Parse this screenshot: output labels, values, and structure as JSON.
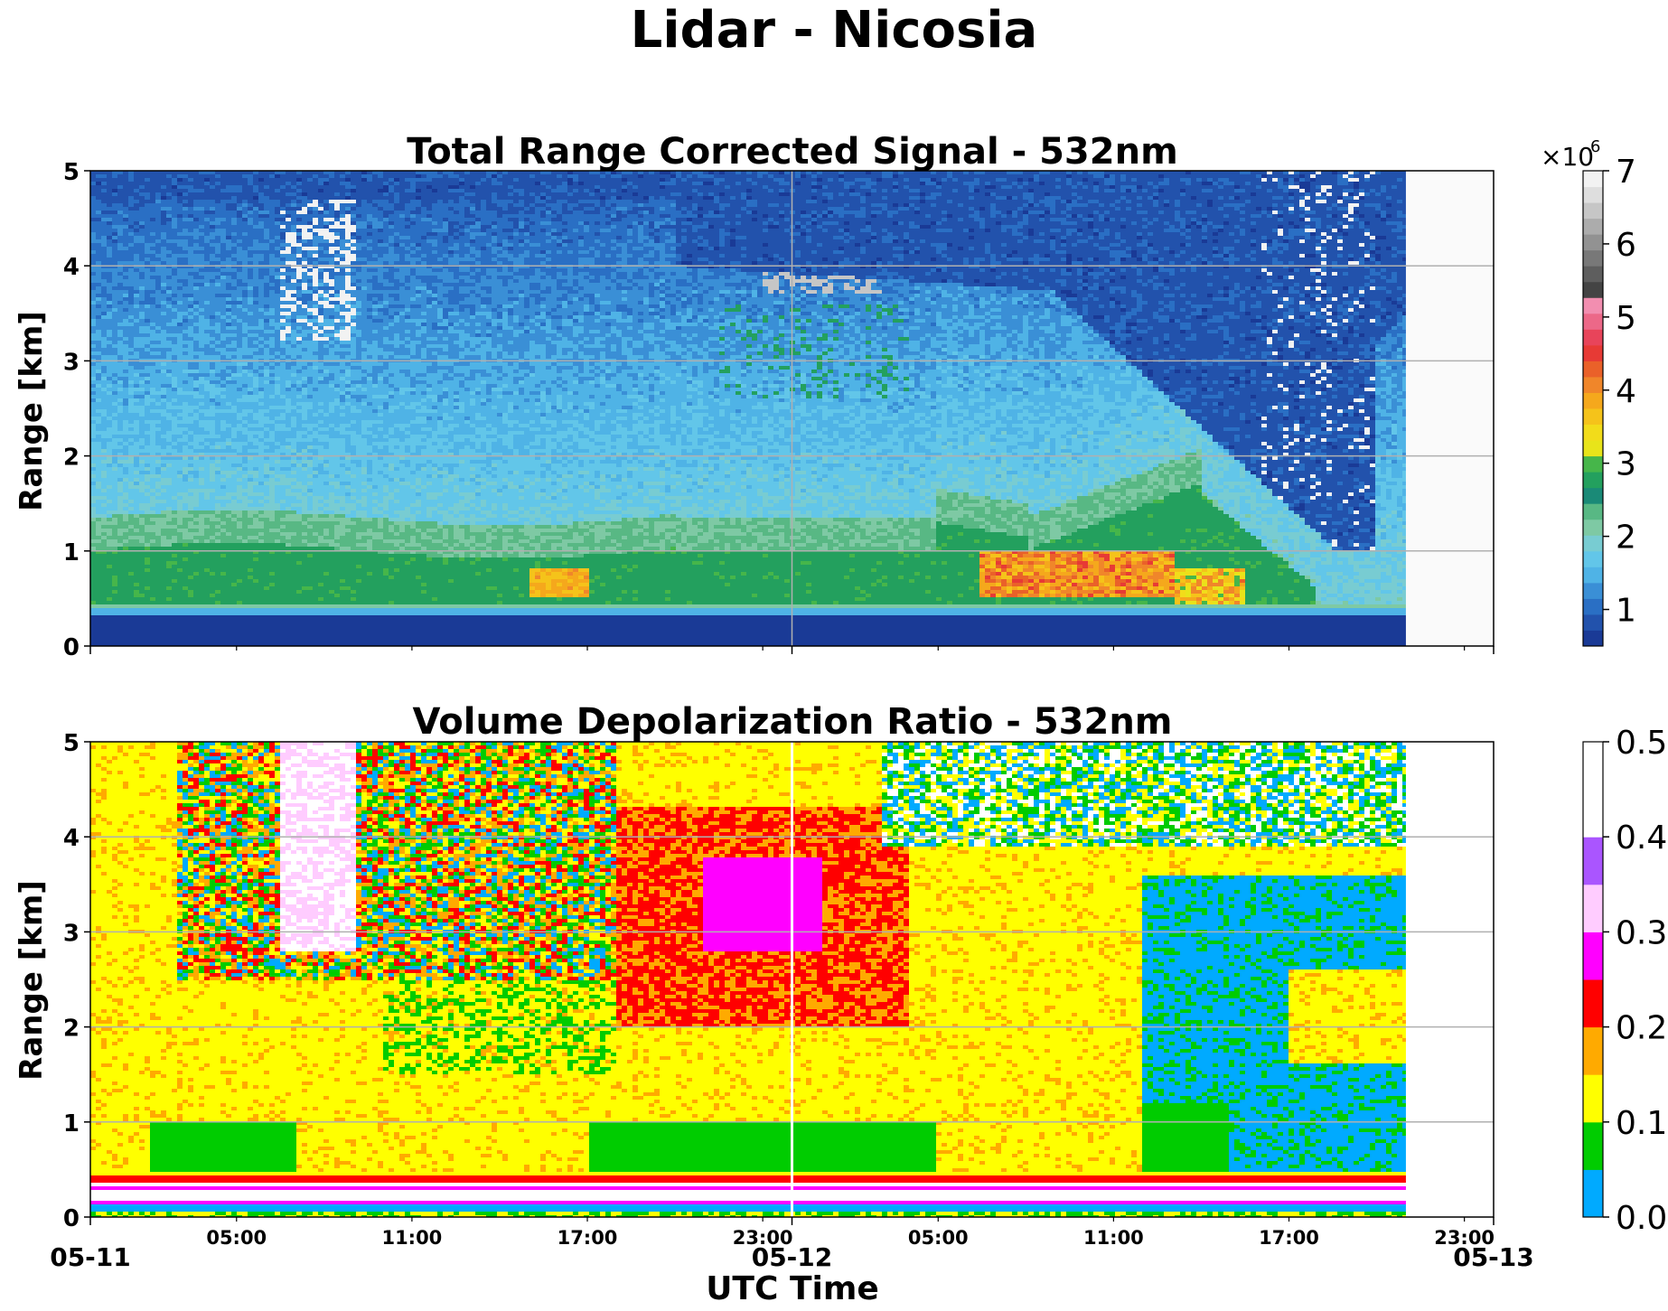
{
  "figure": {
    "suptitle": "Lidar - Nicosia",
    "xlabel": "UTC Time"
  },
  "chart_data": [
    {
      "type": "heatmap",
      "title": "Total Range Corrected Signal - 532nm",
      "ylabel": "Range [km]",
      "xlim": [
        "2019-05-11 00:00",
        "2019-05-13 00:00"
      ],
      "ylim": [
        0,
        5
      ],
      "yticks": [
        0,
        1,
        2,
        3,
        4,
        5
      ],
      "grid": true,
      "data_end": "2019-05-12 21:00",
      "colorbar": {
        "range": [
          0.5,
          7
        ],
        "ticks": [
          1,
          2,
          3,
          4,
          5,
          6,
          7
        ],
        "multiplier_label": "×10",
        "multiplier_exponent": "6",
        "colors": [
          "#1a3a96",
          "#2252ac",
          "#2a6fc4",
          "#3a8fd6",
          "#4fb3e6",
          "#62c6e9",
          "#78ccd2",
          "#7ec9a4",
          "#58b884",
          "#1a8a77",
          "#23a05e",
          "#46b64a",
          "#e8e41a",
          "#f2dc1a",
          "#f5c31a",
          "#f5a81c",
          "#f0862a",
          "#ea6129",
          "#e73a35",
          "#e8445a",
          "#ec6888",
          "#f28eb0",
          "#444444",
          "#5e5e5e",
          "#787878",
          "#929292",
          "#acacac",
          "#c6c6c6",
          "#dedede",
          "#f2f2f2"
        ]
      }
    },
    {
      "type": "heatmap",
      "title": "Volume Depolarization Ratio - 532nm",
      "ylabel": "Range [km]",
      "xlim": [
        "2019-05-11 00:00",
        "2019-05-13 00:00"
      ],
      "ylim": [
        0,
        5
      ],
      "yticks": [
        0,
        1,
        2,
        3,
        4,
        5
      ],
      "grid": true,
      "data_end": "2019-05-12 21:00",
      "colorbar": {
        "range": [
          0.0,
          0.5
        ],
        "ticks": [
          "0.0",
          "0.1",
          "0.2",
          "0.3",
          "0.4",
          "0.5"
        ],
        "bounds": [
          0,
          0.05,
          0.1,
          0.15,
          0.2,
          0.25,
          0.3,
          0.35,
          0.4,
          0.45,
          0.5
        ],
        "colors": [
          "#00aaff",
          "#00cc00",
          "#ffff00",
          "#ffaa00",
          "#ff0000",
          "#ff00ff",
          "#ffccff",
          "#aa55ff",
          "#ffffff",
          "#ffffff"
        ]
      }
    }
  ],
  "xaxis": {
    "major_ticks": [
      {
        "pos": "2019-05-11 00:00",
        "label": "05-11"
      },
      {
        "pos": "2019-05-12 00:00",
        "label": "05-12"
      },
      {
        "pos": "2019-05-13 00:00",
        "label": "05-13"
      }
    ],
    "minor_ticks": [
      {
        "pos": "2019-05-11 05:00",
        "label": "05:00"
      },
      {
        "pos": "2019-05-11 11:00",
        "label": "11:00"
      },
      {
        "pos": "2019-05-11 17:00",
        "label": "17:00"
      },
      {
        "pos": "2019-05-11 23:00",
        "label": "23:00"
      },
      {
        "pos": "2019-05-12 05:00",
        "label": "05:00"
      },
      {
        "pos": "2019-05-12 11:00",
        "label": "11:00"
      },
      {
        "pos": "2019-05-12 17:00",
        "label": "17:00"
      },
      {
        "pos": "2019-05-12 23:00",
        "label": "23:00"
      }
    ]
  }
}
